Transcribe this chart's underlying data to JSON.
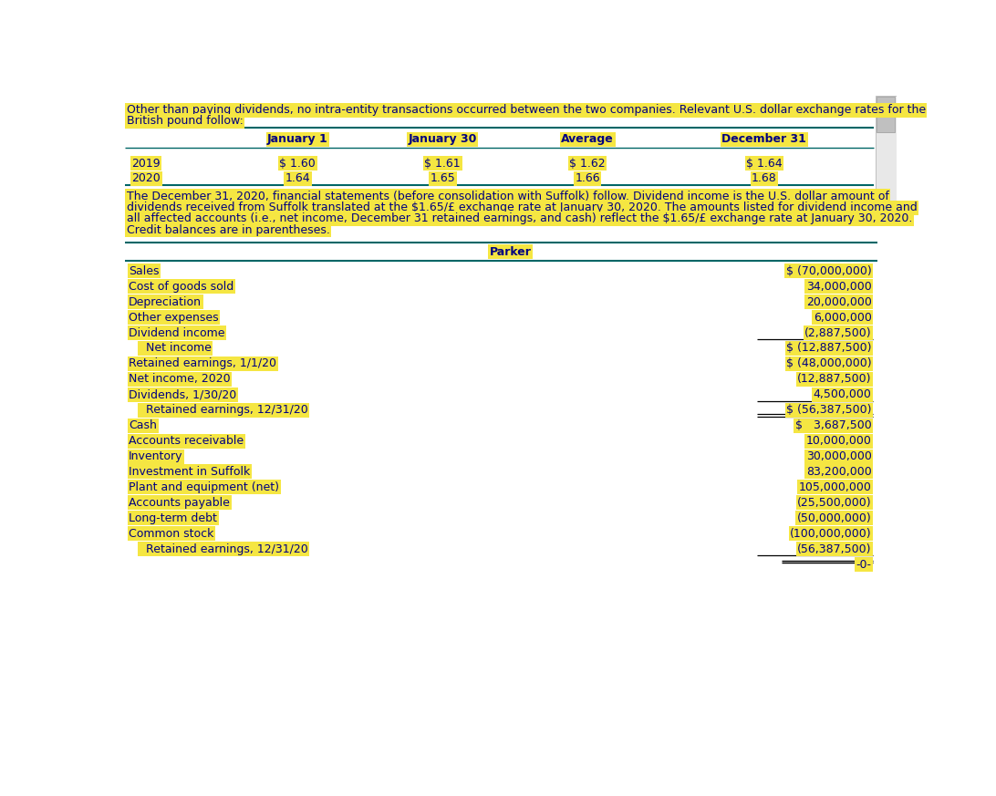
{
  "bg_color": "#ffffff",
  "highlight_color": "#f5e642",
  "text_color": "#000080",
  "border_color": "#006666",
  "header_text_line1": "Other than paying dividends, no intra-entity transactions occurred between the two companies. Relevant U.S. dollar exchange rates for the",
  "header_text_line2": "British pound follow:",
  "exchange_headers": [
    "",
    "January 1",
    "January 30",
    "Average",
    "December 31"
  ],
  "exchange_rows": [
    [
      "2019",
      "$ 1.60",
      "$ 1.61",
      "$ 1.62",
      "$ 1.64"
    ],
    [
      "2020",
      "1.64",
      "1.65",
      "1.66",
      "1.68"
    ]
  ],
  "paragraph_lines": [
    "The December 31, 2020, financial statements (before consolidation with Suffolk) follow. Dividend income is the U.S. dollar amount of",
    "dividends received from Suffolk translated at the $1.65/£ exchange rate at January 30, 2020. The amounts listed for dividend income and",
    "all affected accounts (i.e., net income, December 31 retained earnings, and cash) reflect the $1.65/£ exchange rate at January 30, 2020.",
    "Credit balances are in parentheses."
  ],
  "parker_title": "Parker",
  "financial_rows": [
    {
      "label": "Sales",
      "value": "$ (70,000,000)",
      "indent": 0,
      "ul": 0,
      "final": 0
    },
    {
      "label": "Cost of goods sold",
      "value": "34,000,000",
      "indent": 0,
      "ul": 0,
      "final": 0
    },
    {
      "label": "Depreciation",
      "value": "20,000,000",
      "indent": 0,
      "ul": 0,
      "final": 0
    },
    {
      "label": "Other expenses",
      "value": "6,000,000",
      "indent": 0,
      "ul": 0,
      "final": 0
    },
    {
      "label": "Dividend income",
      "value": "(2,887,500)",
      "indent": 0,
      "ul": 1,
      "final": 0
    },
    {
      "label": "  Net income",
      "value": "$ (12,887,500)",
      "indent": 1,
      "ul": 0,
      "final": 0
    },
    {
      "label": "Retained earnings, 1/1/20",
      "value": "$ (48,000,000)",
      "indent": 0,
      "ul": 0,
      "final": 0
    },
    {
      "label": "Net income, 2020",
      "value": "(12,887,500)",
      "indent": 0,
      "ul": 0,
      "final": 0
    },
    {
      "label": "Dividends, 1/30/20",
      "value": "4,500,000",
      "indent": 0,
      "ul": 1,
      "final": 0
    },
    {
      "label": "  Retained earnings, 12/31/20",
      "value": "$ (56,387,500)",
      "indent": 1,
      "ul": 2,
      "final": 0
    },
    {
      "label": "Cash",
      "value": "$   3,687,500",
      "indent": 0,
      "ul": 0,
      "final": 0
    },
    {
      "label": "Accounts receivable",
      "value": "10,000,000",
      "indent": 0,
      "ul": 0,
      "final": 0
    },
    {
      "label": "Inventory",
      "value": "30,000,000",
      "indent": 0,
      "ul": 0,
      "final": 0
    },
    {
      "label": "Investment in Suffolk",
      "value": "83,200,000",
      "indent": 0,
      "ul": 0,
      "final": 0
    },
    {
      "label": "Plant and equipment (net)",
      "value": "105,000,000",
      "indent": 0,
      "ul": 0,
      "final": 0
    },
    {
      "label": "Accounts payable",
      "value": "(25,500,000)",
      "indent": 0,
      "ul": 0,
      "final": 0
    },
    {
      "label": "Long-term debt",
      "value": "(50,000,000)",
      "indent": 0,
      "ul": 0,
      "final": 0
    },
    {
      "label": "Common stock",
      "value": "(100,000,000)",
      "indent": 0,
      "ul": 0,
      "final": 0
    },
    {
      "label": "  Retained earnings, 12/31/20",
      "value": "(56,387,500)",
      "indent": 1,
      "ul": 1,
      "final": 0
    },
    {
      "label": "",
      "value": "–0–",
      "indent": 0,
      "ul": 0,
      "final": 1
    }
  ],
  "font_size": 9.0,
  "scrollbar_color": "#d0d0d0"
}
